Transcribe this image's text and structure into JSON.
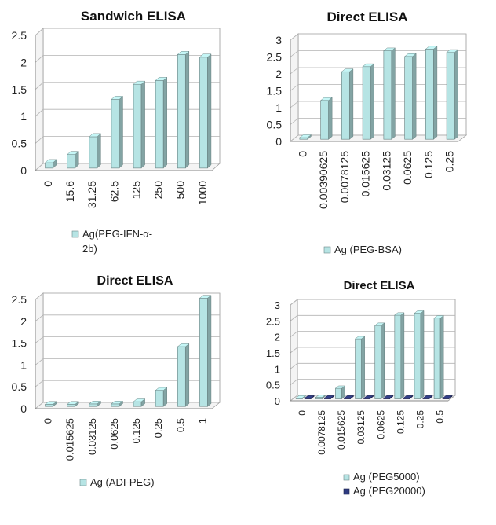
{
  "chart_data": [
    {
      "type": "bar",
      "title": "Sandwich ELISA",
      "categories": [
        "0",
        "15.6",
        "31.25",
        "62.5",
        "125",
        "250",
        "500",
        "1000"
      ],
      "series": [
        {
          "name": "Ag(PEG-IFN-α-2b)",
          "color": "#b6e4e4",
          "values": [
            0.1,
            0.25,
            0.58,
            1.27,
            1.55,
            1.62,
            2.1,
            2.05
          ]
        }
      ],
      "ylim": [
        0,
        2.5
      ],
      "yticks": [
        "0",
        "0.5",
        "1",
        "1.5",
        "2",
        "2.5"
      ],
      "legend_lines": [
        "Ag(PEG-IFN-α-",
        "2b)"
      ],
      "legend": "bottom",
      "xlabel": "",
      "ylabel": ""
    },
    {
      "type": "bar",
      "title": "Direct ELISA",
      "categories": [
        "0",
        "0.00390625",
        "0.0078125",
        "0.015625",
        "0.03125",
        "0.0625",
        "0.125",
        "0.25"
      ],
      "series": [
        {
          "name": "Ag (PEG-BSA)",
          "color": "#b6e4e4",
          "values": [
            0.05,
            1.15,
            2.0,
            2.15,
            2.62,
            2.45,
            2.67,
            2.57
          ]
        }
      ],
      "ylim": [
        0,
        3
      ],
      "yticks": [
        "0",
        "0.5",
        "1",
        "1.5",
        "2",
        "2.5",
        "3"
      ],
      "legend": "bottom",
      "xlabel": "",
      "ylabel": ""
    },
    {
      "type": "bar",
      "title": "Direct ELISA",
      "categories": [
        "0",
        "0.015625",
        "0.03125",
        "0.0625",
        "0.125",
        "0.25",
        "0.5",
        "1"
      ],
      "series": [
        {
          "name": "Ag (ADI-PEG)",
          "color": "#b6e4e4",
          "values": [
            0.05,
            0.05,
            0.06,
            0.06,
            0.11,
            0.37,
            1.37,
            2.48
          ]
        }
      ],
      "ylim": [
        0,
        2.5
      ],
      "yticks": [
        "0",
        "0.5",
        "1",
        "1.5",
        "2",
        "2.5"
      ],
      "legend": "bottom",
      "xlabel": "",
      "ylabel": ""
    },
    {
      "type": "bar",
      "title": "Direct ELISA",
      "categories": [
        "0",
        "0.0078125",
        "0.015625",
        "0.03125",
        "0.0625",
        "0.125",
        "0.25",
        "0.5"
      ],
      "series": [
        {
          "name": "Ag (PEG5000)",
          "color": "#b6e4e4",
          "values": [
            0.03,
            0.05,
            0.33,
            1.88,
            2.3,
            2.62,
            2.68,
            2.53
          ]
        },
        {
          "name": "Ag (PEG20000)",
          "color": "#2e3a80",
          "values": [
            0.02,
            0.02,
            0.02,
            0.02,
            0.02,
            0.02,
            0.02,
            0.02
          ]
        }
      ],
      "ylim": [
        0,
        3
      ],
      "yticks": [
        "0",
        "0.5",
        "1",
        "1.5",
        "2",
        "2.5",
        "3"
      ],
      "legend": "bottom",
      "xlabel": "",
      "ylabel": ""
    }
  ]
}
